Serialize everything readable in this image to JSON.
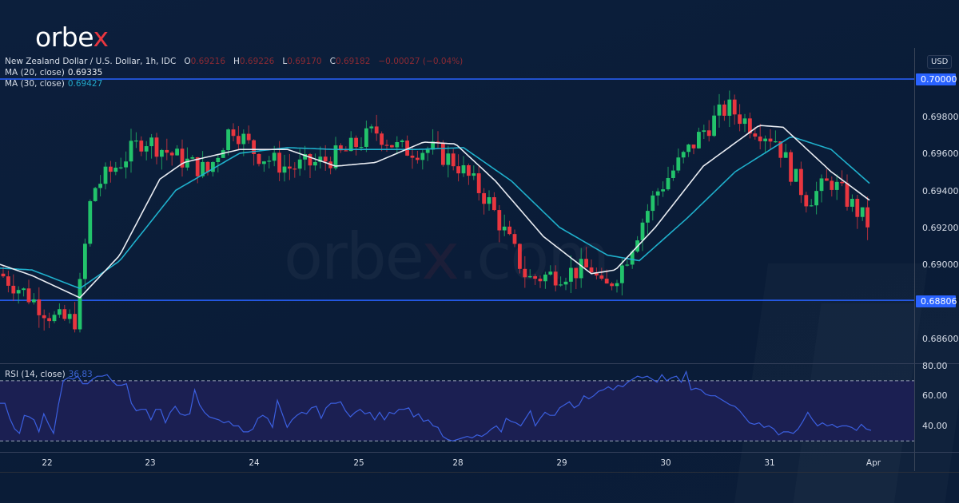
{
  "brand": {
    "name_main": "orbe",
    "name_accent": "x",
    "watermark_main": "orbe",
    "watermark_accent": "x",
    "watermark_tail": ".com"
  },
  "legend": {
    "symbol": "New Zealand Dollar / U.S. Dollar, 1h, IDC",
    "o_label": "O",
    "o_value": "0.69216",
    "h_label": "H",
    "h_value": "0.69226",
    "l_label": "L",
    "l_value": "0.69170",
    "c_label": "C",
    "c_value": "0.69182",
    "change": "−0.00027 (−0.04%)",
    "ma20_label": "MA (20, close)",
    "ma20_value": "0.69335",
    "ma30_label": "MA (30, close)",
    "ma30_value": "0.69427"
  },
  "rsi_legend": {
    "label": "RSI (14, close)",
    "value": "36.83"
  },
  "price_axis": {
    "currency": "USD",
    "ticks": [
      "0.69800",
      "0.69600",
      "0.69400",
      "0.69200",
      "0.69000",
      "0.68600"
    ],
    "tags": [
      "0.70000",
      "0.68806"
    ]
  },
  "rsi_axis": {
    "ticks": [
      "80.00",
      "60.00",
      "40.00"
    ]
  },
  "time_axis": {
    "labels": [
      "22",
      "23",
      "24",
      "25",
      "28",
      "29",
      "30",
      "31",
      "Apr"
    ]
  },
  "colors": {
    "up": "#22c36b",
    "down": "#e8363f",
    "ma20": "#e9ecf2",
    "ma30": "#1fb0cc",
    "level": "#2962ff",
    "rsi": "#3b5fe0",
    "rsi_band": "#1b1f52"
  },
  "chart_data": [
    {
      "type": "candlestick",
      "title": "New Zealand Dollar / U.S. Dollar, 1h, IDC",
      "ylabel": "USD",
      "ylim": [
        0.685,
        0.7015
      ],
      "x_labels": [
        "22",
        "23",
        "24",
        "25",
        "28",
        "29",
        "30",
        "31",
        "Apr"
      ],
      "horizontal_levels": [
        0.7,
        0.68806
      ],
      "last_ohlc": {
        "open": 0.69216,
        "high": 0.69226,
        "low": 0.6917,
        "close": 0.69182,
        "change": -0.00027,
        "change_pct": -0.04
      },
      "series": [
        {
          "name": "MA (20, close)",
          "last": 0.69335,
          "path_approx": [
            [
              0,
              0.69
            ],
            [
              40,
              0.6894
            ],
            [
              100,
              0.6882
            ],
            [
              150,
              0.6905
            ],
            [
              200,
              0.6946
            ],
            [
              230,
              0.6955
            ],
            [
              300,
              0.6962
            ],
            [
              360,
              0.6962
            ],
            [
              420,
              0.6953
            ],
            [
              470,
              0.6955
            ],
            [
              530,
              0.6966
            ],
            [
              570,
              0.6965
            ],
            [
              620,
              0.6945
            ],
            [
              680,
              0.6915
            ],
            [
              740,
              0.6895
            ],
            [
              770,
              0.6897
            ],
            [
              820,
              0.692
            ],
            [
              880,
              0.6953
            ],
            [
              950,
              0.6975
            ],
            [
              980,
              0.6974
            ],
            [
              1040,
              0.695
            ],
            [
              1090,
              0.6934
            ]
          ]
        },
        {
          "name": "MA (30, close)",
          "last": 0.69427,
          "path_approx": [
            [
              0,
              0.6898
            ],
            [
              40,
              0.6897
            ],
            [
              100,
              0.6887
            ],
            [
              150,
              0.6902
            ],
            [
              220,
              0.694
            ],
            [
              300,
              0.696
            ],
            [
              360,
              0.6963
            ],
            [
              420,
              0.6962
            ],
            [
              520,
              0.6962
            ],
            [
              580,
              0.6963
            ],
            [
              640,
              0.6945
            ],
            [
              700,
              0.692
            ],
            [
              760,
              0.6905
            ],
            [
              800,
              0.6902
            ],
            [
              860,
              0.6925
            ],
            [
              920,
              0.695
            ],
            [
              990,
              0.6969
            ],
            [
              1040,
              0.6962
            ],
            [
              1090,
              0.6943
            ]
          ]
        }
      ]
    },
    {
      "type": "line",
      "title": "RSI (14, close)",
      "last": 36.83,
      "ylim": [
        25,
        82
      ],
      "bands": [
        70,
        30
      ],
      "x_labels": [
        "22",
        "23",
        "24",
        "25",
        "28",
        "29",
        "30",
        "31",
        "Apr"
      ],
      "series": [
        {
          "name": "RSI",
          "values_approx": [
            55,
            55,
            45,
            38,
            35,
            47,
            46,
            44,
            36,
            48,
            41,
            35,
            54,
            70,
            72,
            71,
            73,
            68,
            68,
            71,
            73,
            73,
            74,
            70,
            67,
            67,
            68,
            55,
            50,
            51,
            51,
            44,
            51,
            51,
            42,
            49,
            53,
            48,
            47,
            48,
            64,
            54,
            49,
            46,
            45,
            44,
            42,
            43,
            40,
            40,
            36,
            36,
            38,
            45,
            47,
            45,
            39,
            57,
            48,
            39,
            44,
            47,
            49,
            48,
            52,
            53,
            45,
            52,
            55,
            55,
            56,
            50,
            46,
            49,
            51,
            48,
            49,
            44,
            49,
            44,
            49,
            48,
            51,
            51,
            52,
            46,
            48,
            43,
            44,
            40,
            39,
            33,
            31,
            30,
            31,
            32,
            33,
            32,
            34,
            33,
            35,
            38,
            40,
            36,
            45,
            43,
            42,
            40,
            45,
            50,
            40,
            45,
            49,
            47,
            47,
            52,
            54,
            56,
            52,
            54,
            60,
            58,
            60,
            63,
            64,
            66,
            64,
            67,
            66,
            69,
            71,
            73,
            72,
            73,
            71,
            69,
            74,
            70,
            72,
            73,
            69,
            76,
            64,
            65,
            64,
            61,
            60,
            60,
            58,
            56,
            54,
            53,
            50,
            46,
            42,
            41,
            42,
            39,
            40,
            38,
            34,
            36,
            36,
            35,
            38,
            43,
            49,
            44,
            40,
            42,
            40,
            41,
            39,
            40,
            40,
            39,
            37,
            41,
            38,
            37
          ]
        }
      ]
    }
  ]
}
